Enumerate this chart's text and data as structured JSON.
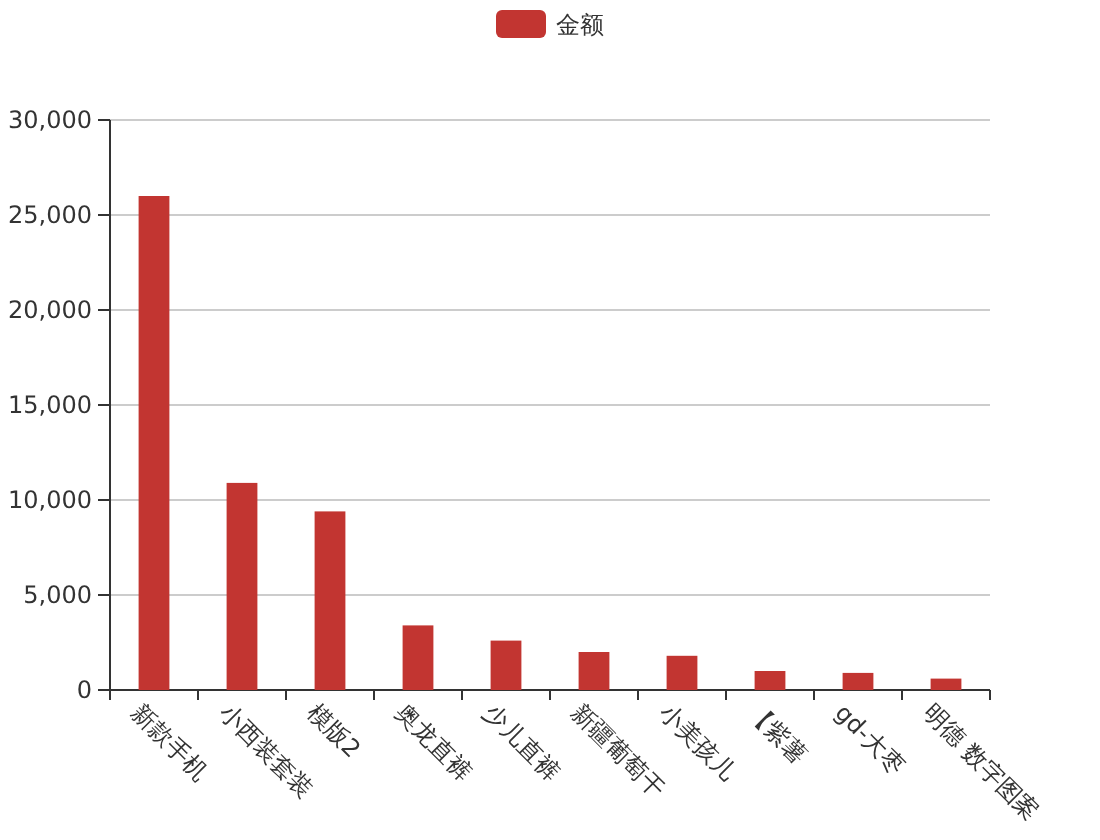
{
  "chart_data": {
    "type": "bar",
    "categories": [
      "新款手机",
      "小西装套装",
      "模版2",
      "奥龙直裤",
      "少儿直裤",
      "新疆葡萄干",
      "小美孩儿",
      "【紫薯",
      "gd-大枣",
      "明德 数字图案"
    ],
    "series": [
      {
        "name": "金额",
        "color": "#c23531",
        "values": [
          26000,
          10900,
          9400,
          3400,
          2600,
          2000,
          1800,
          1000,
          900,
          600
        ]
      }
    ],
    "ylim": [
      0,
      30000
    ],
    "yticks": [
      {
        "value": 0,
        "label": "0"
      },
      {
        "value": 5000,
        "label": "5,000"
      },
      {
        "value": 10000,
        "label": "10,000"
      },
      {
        "value": 15000,
        "label": "15,000"
      },
      {
        "value": 20000,
        "label": "20,000"
      },
      {
        "value": 25000,
        "label": "25,000"
      },
      {
        "value": 30000,
        "label": "30,000"
      }
    ],
    "grid": "y",
    "legend": "top"
  }
}
